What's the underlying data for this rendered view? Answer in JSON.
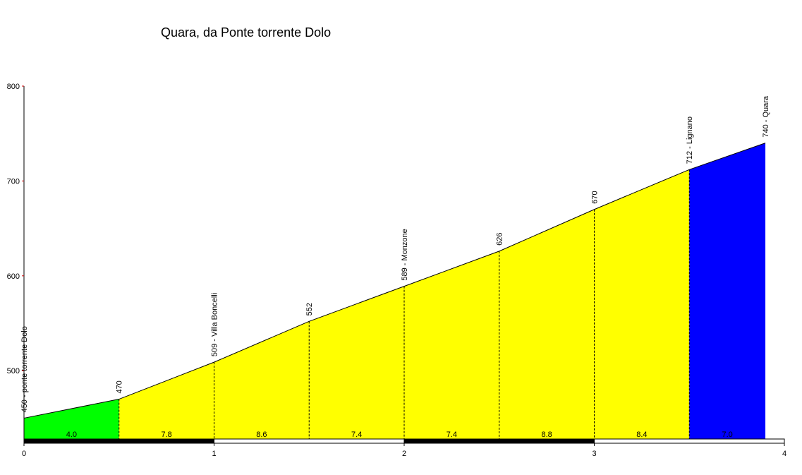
{
  "chart_data": {
    "type": "elevation_profile",
    "title": "Quara, da Ponte torrente Dolo",
    "x": [
      0,
      0.5,
      1,
      1.5,
      2,
      2.5,
      3,
      3.5,
      3.9
    ],
    "values": [
      450,
      470,
      509,
      552,
      589,
      626,
      670,
      712,
      740
    ],
    "point_labels": [
      "450 - ponte torrente Dolo",
      "470",
      "509 - Villa Boncelli",
      "552",
      "589 - Monzone",
      "626",
      "670",
      "712 - Lignano",
      "740 - Quara"
    ],
    "segments": [
      {
        "value": 4,
        "label": "4.0",
        "color": "#00ff00"
      },
      {
        "value": 7.8,
        "label": "7.8",
        "color": "#ffff00"
      },
      {
        "value": 8.6,
        "label": "8.6",
        "color": "#ffff00"
      },
      {
        "value": 7.4,
        "label": "7.4",
        "color": "#ffff00"
      },
      {
        "value": 7.4,
        "label": "7.4",
        "color": "#ffff00"
      },
      {
        "value": 8.8,
        "label": "8.8",
        "color": "#ffff00"
      },
      {
        "value": 8.4,
        "label": "8.4",
        "color": "#ffff00"
      },
      {
        "value": 7,
        "label": "7.0",
        "color": "#0000ff"
      }
    ],
    "xlim": [
      0,
      4
    ],
    "xticks": [
      0,
      1,
      2,
      3,
      4
    ],
    "ylim": [
      428,
      800
    ],
    "yticks": [
      500,
      600,
      700,
      800
    ]
  }
}
